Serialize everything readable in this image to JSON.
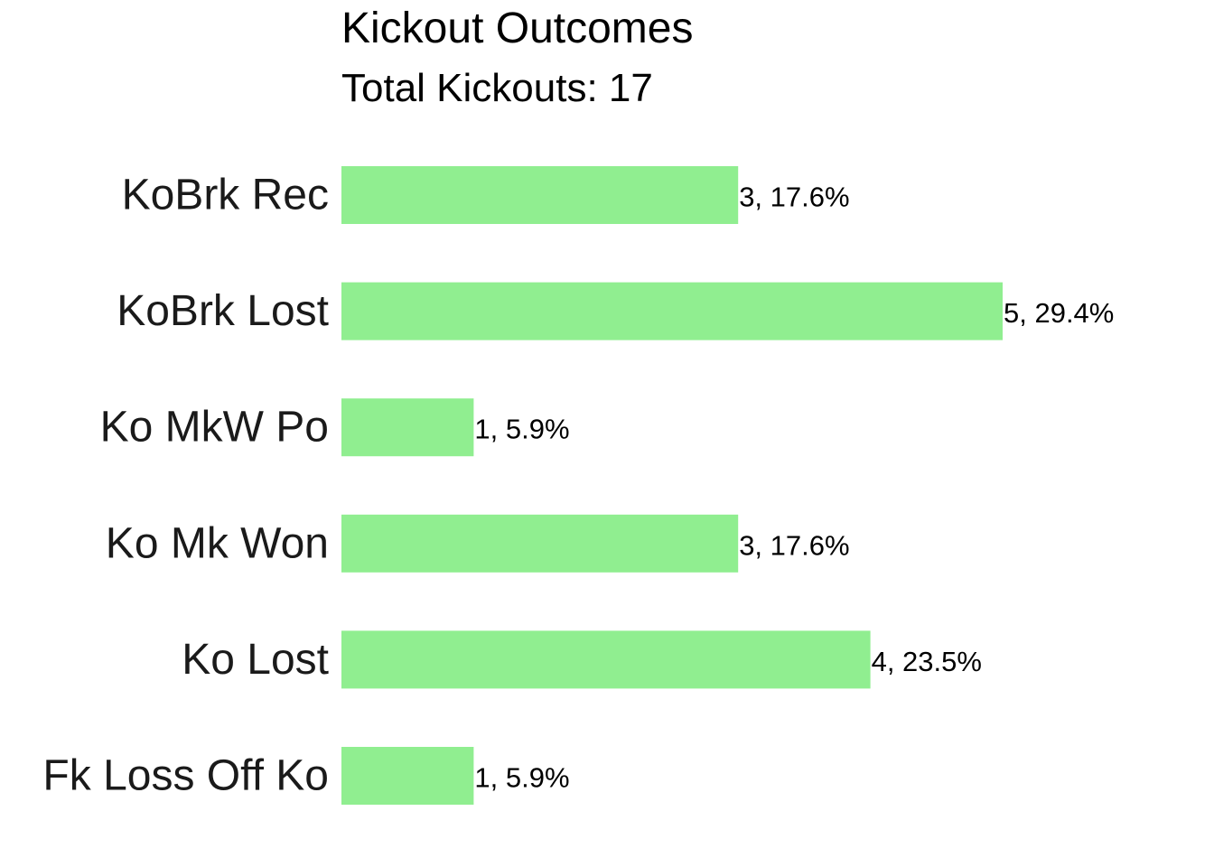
{
  "chart_data": {
    "type": "bar",
    "orientation": "horizontal",
    "title": "Kickout Outcomes",
    "subtitle": "Total Kickouts: 17",
    "categories": [
      "KoBrk Rec",
      "KoBrk Lost",
      "Ko MkW Po",
      "Ko Mk Won",
      "Ko Lost",
      "Fk Loss Off Ko"
    ],
    "values": [
      3,
      5,
      1,
      3,
      4,
      1
    ],
    "data_labels": [
      "3, 17.6%",
      "5, 29.4%",
      "1, 5.9%",
      "3, 17.6%",
      "4, 23.5%",
      "1, 5.9%"
    ],
    "xlim": [
      0,
      5
    ],
    "grid": false,
    "legend": "none",
    "bar_color": "#90EE90"
  }
}
